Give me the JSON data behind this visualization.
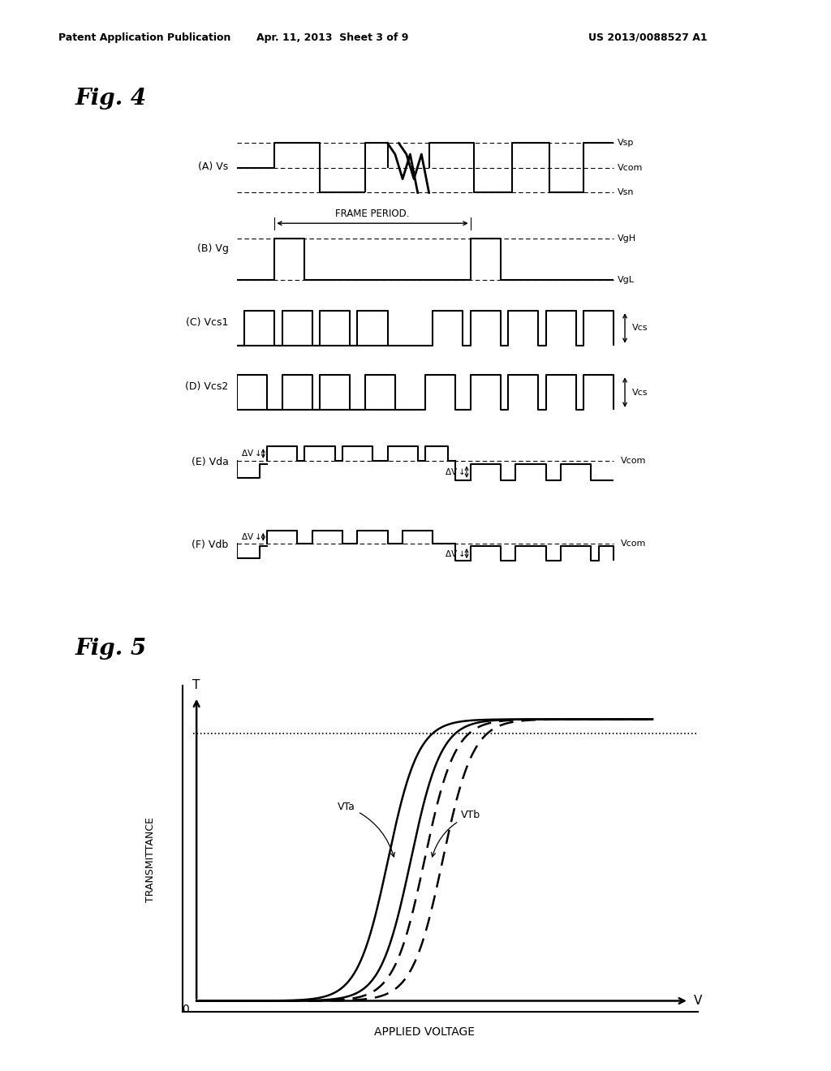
{
  "bg_color": "#ffffff",
  "header_left": "Patent Application Publication",
  "header_mid": "Apr. 11, 2013  Sheet 3 of 9",
  "header_right": "US 2013/0088527 A1",
  "fig4_title": "Fig. 4",
  "fig5_title": "Fig. 5",
  "frame_period_label": "FRAME PERIOD.",
  "fig5_xlabel": "APPLIED VOLTAGE",
  "fig5_ylabel": "TRANSMITTANCE",
  "fig5_xaxis_label": "V",
  "fig5_yaxis_label": "T"
}
